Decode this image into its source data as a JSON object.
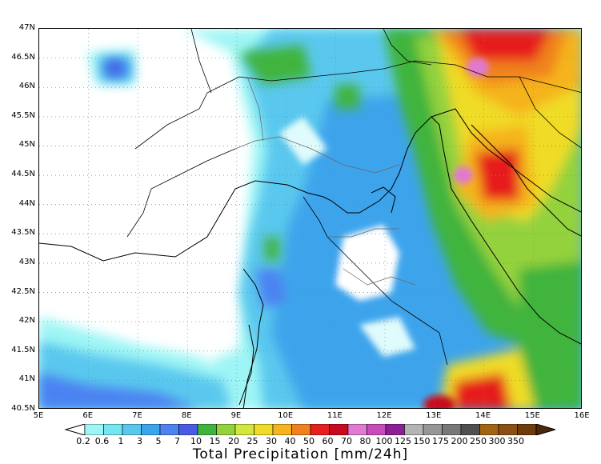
{
  "map": {
    "lat_labels": [
      "47N",
      "46.5N",
      "46N",
      "45.5N",
      "45N",
      "44.5N",
      "44N",
      "43.5N",
      "43N",
      "42.5N",
      "42N",
      "41.5N",
      "41N",
      "40.5N"
    ],
    "lon_labels": [
      "5E",
      "6E",
      "7E",
      "8E",
      "9E",
      "10E",
      "11E",
      "12E",
      "13E",
      "14E",
      "15E",
      "16E"
    ],
    "lat_range": [
      40.5,
      47
    ],
    "lon_range": [
      5,
      16
    ],
    "grid": "dotted",
    "icon": "precipitation-field"
  },
  "colorbar": {
    "title": "Total Precipitation [mm/24h]",
    "labels": [
      "0.2",
      "0.6",
      "1",
      "3",
      "5",
      "7",
      "10",
      "15",
      "20",
      "25",
      "30",
      "40",
      "50",
      "60",
      "70",
      "80",
      "100",
      "125",
      "150",
      "175",
      "200",
      "250",
      "300",
      "350"
    ],
    "colors": [
      "#9ef5f5",
      "#73e6f0",
      "#5ac8ee",
      "#3ca4ec",
      "#4c82f2",
      "#4a5ae6",
      "#3fb43c",
      "#94d23c",
      "#d2e63c",
      "#f0dc28",
      "#f5b41e",
      "#f0821e",
      "#e61e1e",
      "#c80a1e",
      "#e178d2",
      "#c84bb9",
      "#8c1e96",
      "#b4b4b4",
      "#969696",
      "#787878",
      "#505050",
      "#a06414",
      "#8c5014",
      "#6e3c0a",
      "#4b280a"
    ]
  }
}
